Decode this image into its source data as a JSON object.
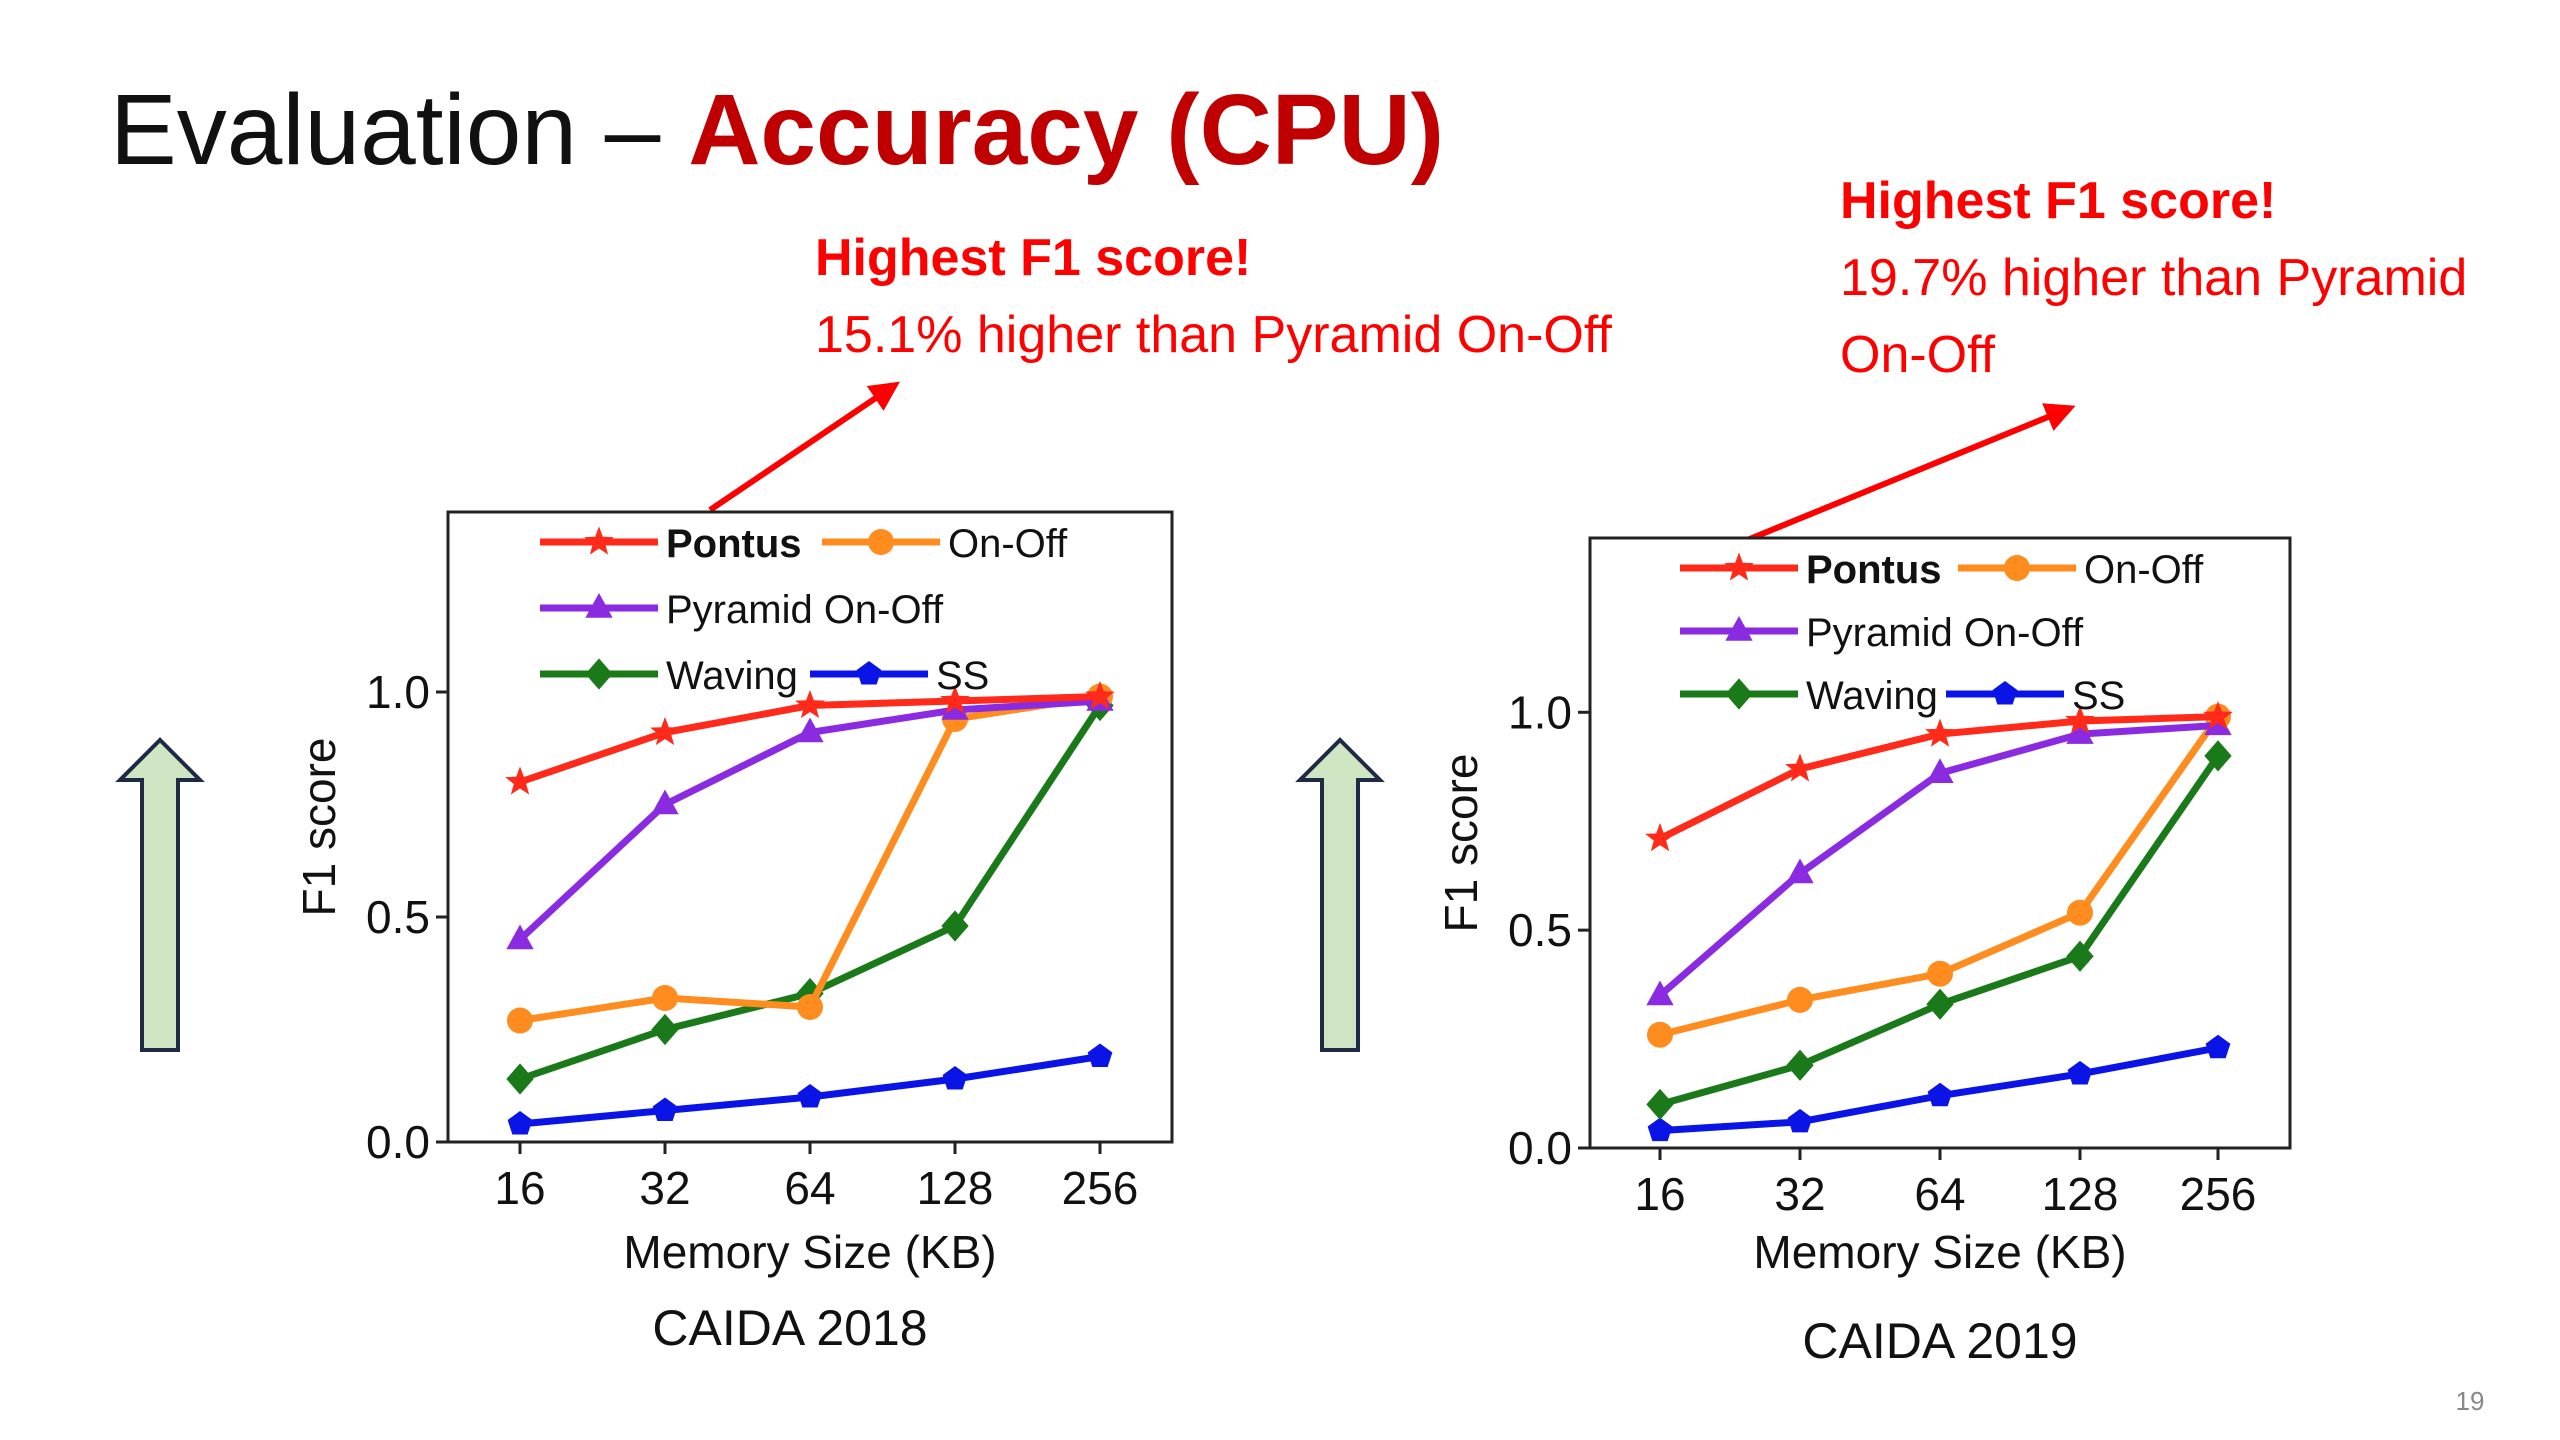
{
  "slide": {
    "title_prefix": "Evaluation – ",
    "title_highlight": "Accuracy (CPU)",
    "page_number": "19",
    "accent_color": "#c00000",
    "note_color": "#ff0000",
    "arrow_fill": "#cfe5c4",
    "arrow_stroke": "#1f2a44"
  },
  "callouts": [
    {
      "lines": [
        "15.1% higher than Pyramid On-Off"
      ],
      "heading": "Highest F1 score!"
    },
    {
      "lines": [
        "19.7% higher than Pyramid",
        "On-Off"
      ],
      "heading": "Highest F1 score!"
    }
  ],
  "chart_data": [
    {
      "type": "line",
      "caption": "CAIDA 2018",
      "xlabel": "Memory Size (KB)",
      "ylabel": "F1 score",
      "categories": [
        "16",
        "32",
        "64",
        "128",
        "256"
      ],
      "ylim": [
        0,
        1.4
      ],
      "yticks": [
        "0.0",
        "0.5",
        "1.0"
      ],
      "legend_position": "top",
      "series": [
        {
          "name": "Pontus",
          "color": "#ff2a1a",
          "marker": "star",
          "values": [
            0.8,
            0.91,
            0.97,
            0.98,
            0.99
          ]
        },
        {
          "name": "On-Off",
          "color": "#ff8c1f",
          "marker": "circle",
          "values": [
            0.27,
            0.32,
            0.3,
            0.94,
            0.99
          ]
        },
        {
          "name": "Pyramid On-Off",
          "color": "#8a2be2",
          "marker": "triangle",
          "values": [
            0.45,
            0.75,
            0.91,
            0.96,
            0.98
          ]
        },
        {
          "name": "Waving",
          "color": "#1a7a1a",
          "marker": "diamond",
          "values": [
            0.14,
            0.25,
            0.33,
            0.48,
            0.97
          ]
        },
        {
          "name": "SS",
          "color": "#0a14e6",
          "marker": "pentagon",
          "values": [
            0.04,
            0.07,
            0.1,
            0.14,
            0.19
          ]
        }
      ]
    },
    {
      "type": "line",
      "caption": "CAIDA 2019",
      "xlabel": "Memory Size (KB)",
      "ylabel": "F1 score",
      "categories": [
        "16",
        "32",
        "64",
        "128",
        "256"
      ],
      "ylim": [
        0,
        1.4
      ],
      "yticks": [
        "0.0",
        "0.5",
        "1.0"
      ],
      "legend_position": "top",
      "series": [
        {
          "name": "Pontus",
          "color": "#ff2a1a",
          "marker": "star",
          "values": [
            0.71,
            0.87,
            0.95,
            0.98,
            0.99
          ]
        },
        {
          "name": "On-Off",
          "color": "#ff8c1f",
          "marker": "circle",
          "values": [
            0.26,
            0.34,
            0.4,
            0.54,
            0.99
          ]
        },
        {
          "name": "Pyramid On-Off",
          "color": "#8a2be2",
          "marker": "triangle",
          "values": [
            0.35,
            0.63,
            0.86,
            0.95,
            0.97
          ]
        },
        {
          "name": "Waving",
          "color": "#1a7a1a",
          "marker": "diamond",
          "values": [
            0.1,
            0.19,
            0.33,
            0.44,
            0.9
          ]
        },
        {
          "name": "SS",
          "color": "#0a14e6",
          "marker": "pentagon",
          "values": [
            0.04,
            0.06,
            0.12,
            0.17,
            0.23
          ]
        }
      ]
    }
  ]
}
